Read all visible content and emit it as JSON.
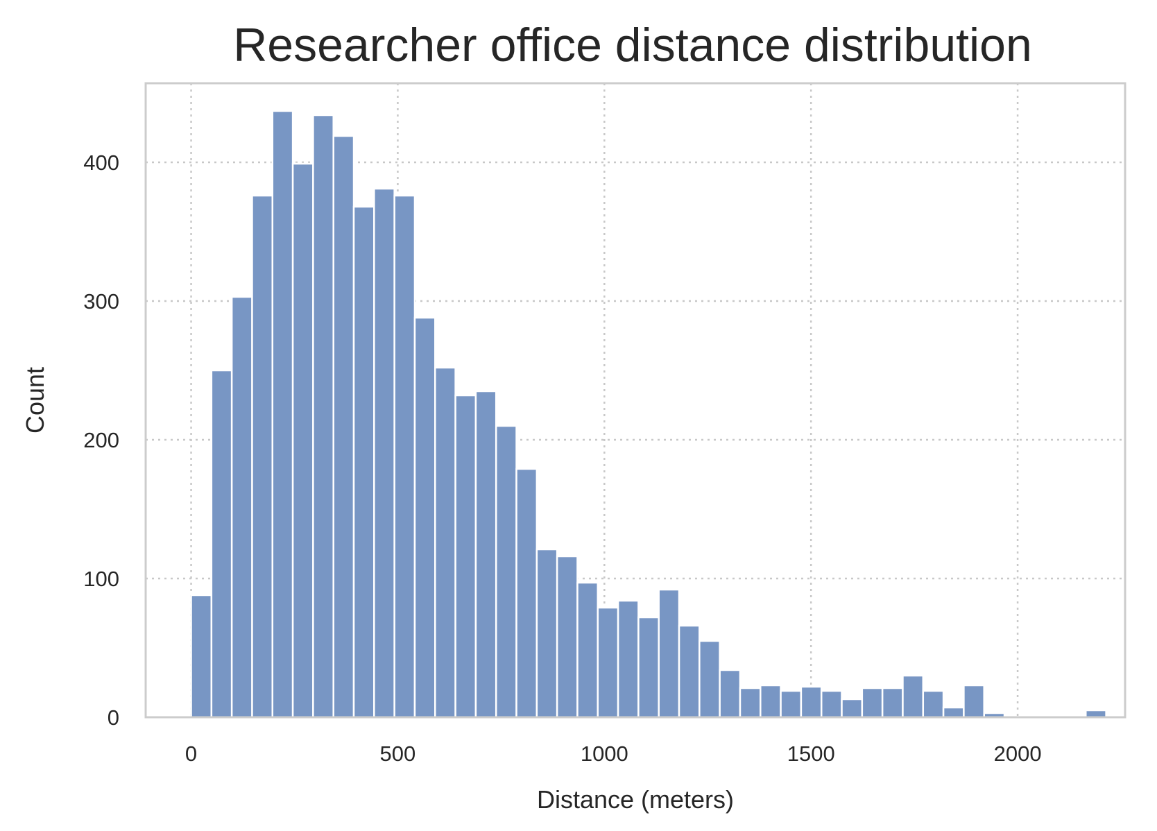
{
  "chart_data": {
    "type": "bar",
    "title": "Researcher office distance distribution",
    "xlabel": "Distance (meters)",
    "ylabel": "Count",
    "xlim": [
      -110,
      2260
    ],
    "ylim": [
      0,
      457
    ],
    "bin_width": 49.2,
    "bin_start": 0,
    "xticks": [
      0,
      500,
      1000,
      1500,
      2000
    ],
    "yticks": [
      0,
      100,
      200,
      300,
      400
    ],
    "grid": true,
    "color": "#7896c4",
    "counts": [
      88,
      250,
      303,
      376,
      437,
      399,
      434,
      419,
      368,
      381,
      376,
      288,
      252,
      232,
      235,
      210,
      179,
      121,
      116,
      97,
      79,
      84,
      72,
      92,
      66,
      55,
      34,
      21,
      23,
      19,
      22,
      19,
      13,
      21,
      21,
      30,
      19,
      7,
      23,
      3,
      0,
      0,
      0,
      0,
      5
    ]
  }
}
